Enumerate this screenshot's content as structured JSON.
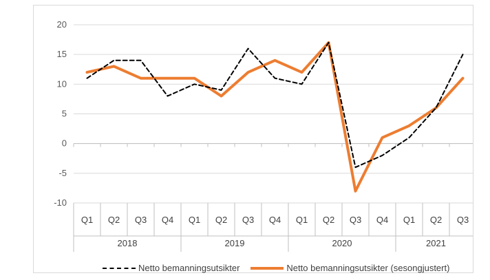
{
  "chart_data": {
    "type": "line",
    "categories": [
      "Q1",
      "Q2",
      "Q3",
      "Q4",
      "Q1",
      "Q2",
      "Q3",
      "Q4",
      "Q1",
      "Q2",
      "Q3",
      "Q4",
      "Q1",
      "Q2",
      "Q3"
    ],
    "years": [
      {
        "label": "2018",
        "count": 4
      },
      {
        "label": "2019",
        "count": 4
      },
      {
        "label": "2020",
        "count": 4
      },
      {
        "label": "2021",
        "count": 3
      }
    ],
    "ylim": [
      -10,
      20
    ],
    "yticks": [
      -10,
      -5,
      0,
      5,
      10,
      15,
      20
    ],
    "grid": true,
    "legend_position": "bottom",
    "series": [
      {
        "name": "Netto bemanningsutsikter",
        "style": "dashed",
        "color": "#000000",
        "values": [
          11,
          14,
          14,
          8,
          10,
          9,
          16,
          11,
          10,
          17,
          -4,
          -2,
          1,
          6,
          15
        ]
      },
      {
        "name": "Netto bemanningsutsikter (sesongjustert)",
        "style": "solid",
        "color": "#ED7D31",
        "values": [
          12,
          13,
          11,
          11,
          11,
          8,
          12,
          14,
          12,
          17,
          -8,
          1,
          3,
          6,
          11
        ]
      }
    ]
  }
}
